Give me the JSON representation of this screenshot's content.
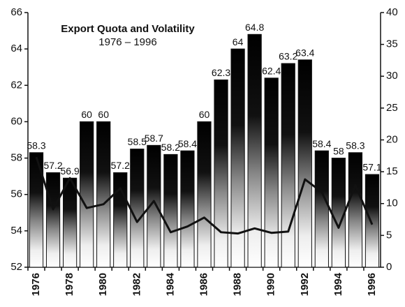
{
  "chart_data": {
    "type": "bar",
    "title": "Export Quota and Volatility",
    "subtitle": "1976 – 1996",
    "categories": [
      "1976",
      null,
      "1978",
      null,
      "1980",
      null,
      "1982",
      null,
      "1984",
      null,
      "1986",
      null,
      "1988",
      null,
      "1990",
      null,
      "1992",
      null,
      "1994",
      null,
      "1996"
    ],
    "series": [
      {
        "type": "bar",
        "color": "#111111",
        "values": [
          58.3,
          57.2,
          56.9,
          60,
          60,
          57.2,
          58.5,
          58.7,
          58.2,
          58.4,
          60,
          62.3,
          64,
          64.8,
          62.4,
          63.2,
          63.4,
          58.4,
          58,
          58.3,
          57.1
        ]
      },
      {
        "type": "line",
        "axis": "y2",
        "color": "#111111",
        "values": [
          17.3,
          9.1,
          14,
          9.3,
          9.9,
          12.4,
          7.1,
          10.4,
          5.5,
          6.4,
          7.8,
          5.5,
          5.3,
          6.1,
          5.4,
          5.6,
          13.8,
          11.8,
          6.2,
          12.9,
          6.7
        ]
      }
    ],
    "ylim": [
      52,
      66
    ],
    "yticks": [
      52,
      54,
      56,
      58,
      60,
      62,
      64,
      66
    ],
    "y2lim": [
      0,
      40
    ],
    "y2ticks": [
      0,
      5,
      10,
      15,
      20,
      25,
      30,
      35,
      40
    ]
  }
}
